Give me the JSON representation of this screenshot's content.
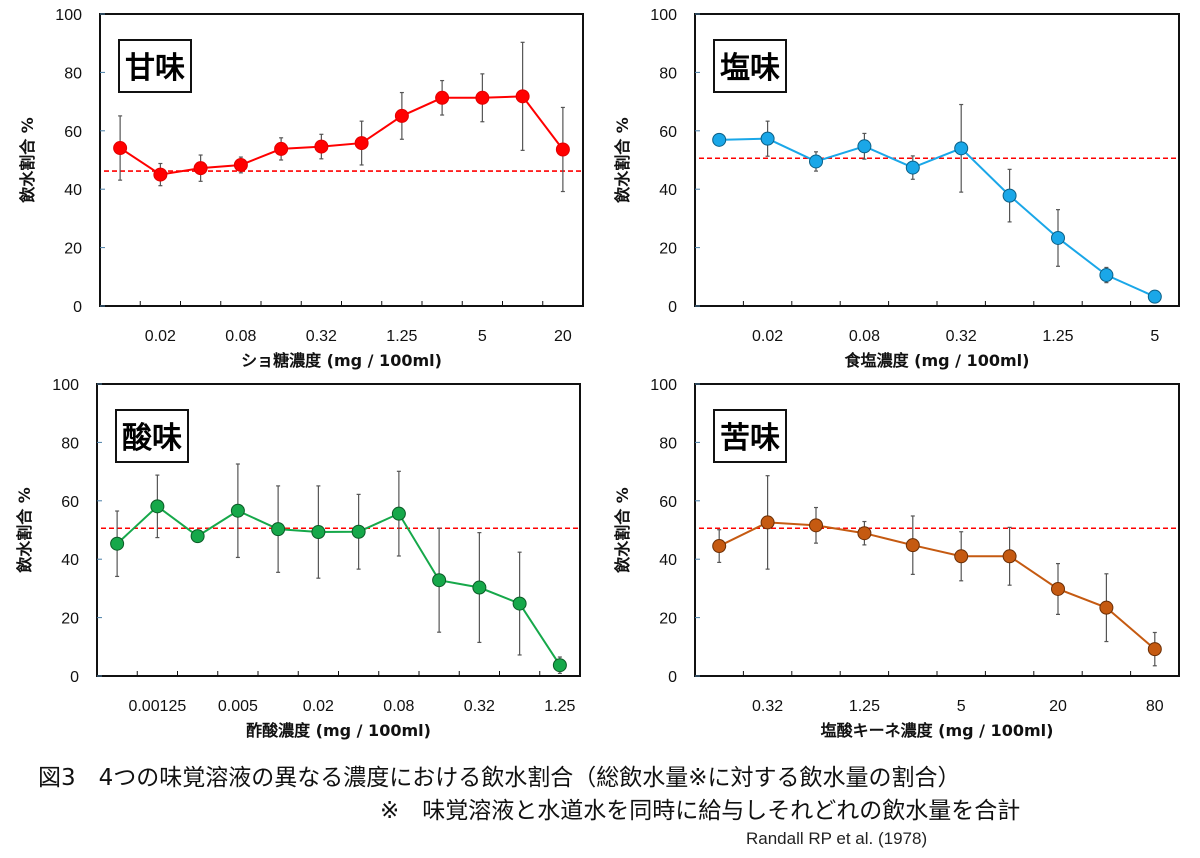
{
  "chart_data": [
    {
      "type": "line",
      "title": "甘味",
      "xlabel": "ショ糖濃度 (mg / 100ml)",
      "ylabel": "飲水割合 %",
      "ylim": [
        0,
        100
      ],
      "yticks": [
        0,
        20,
        40,
        60,
        80,
        100
      ],
      "x_scale": "log2 (categorical)",
      "tick_labels": [
        "",
        "0.02",
        "",
        "0.08",
        "",
        "0.32",
        "",
        "1.25",
        "",
        "5",
        "",
        "20"
      ],
      "values": [
        54.1,
        45.0,
        47.2,
        48.3,
        53.8,
        54.6,
        55.8,
        65.1,
        71.3,
        71.3,
        71.8,
        53.6
      ],
      "errors": [
        11,
        3.8,
        4.5,
        2.7,
        3.8,
        4.2,
        7.5,
        8,
        5.9,
        8.2,
        18.5,
        14.4
      ],
      "reference_line": 46.2,
      "color": "#ff0000",
      "marker_edge": "#e00000",
      "reference_color": "#ff0000",
      "grid": false
    },
    {
      "type": "line",
      "title": "塩味",
      "xlabel": "食塩濃度 (mg / 100ml)",
      "ylabel": "飲水割合 %",
      "ylim": [
        0,
        100
      ],
      "yticks": [
        0,
        20,
        40,
        60,
        80,
        100
      ],
      "x_scale": "log2 (categorical)",
      "tick_labels": [
        "",
        "0.02",
        "",
        "0.08",
        "",
        "0.32",
        "",
        "1.25",
        "",
        "5"
      ],
      "values": [
        56.9,
        57.3,
        49.5,
        54.7,
        47.4,
        54.0,
        37.8,
        23.3,
        10.6,
        3.2
      ],
      "errors": [
        0,
        6,
        3.3,
        4.4,
        4,
        15,
        9,
        9.7,
        2.6,
        0
      ],
      "reference_line": 50.6,
      "color": "#1aa7e8",
      "marker_edge": "#0b5f86",
      "reference_color": "#ff0000",
      "grid": false
    },
    {
      "type": "line",
      "title": "酸味",
      "xlabel": "酢酸濃度 (mg / 100ml)",
      "ylabel": "飲水割合 %",
      "ylim": [
        0,
        100
      ],
      "yticks": [
        0,
        20,
        40,
        60,
        80,
        100
      ],
      "x_scale": "log2 (categorical)",
      "tick_labels": [
        "",
        "0.00125",
        "",
        "0.005",
        "",
        "0.02",
        "",
        "0.08",
        "",
        "0.32",
        "",
        "1.25"
      ],
      "values": [
        45.3,
        58.1,
        47.9,
        56.6,
        50.3,
        49.3,
        49.4,
        55.6,
        32.8,
        30.3,
        24.8,
        3.7
      ],
      "errors": [
        11.2,
        10.7,
        1.5,
        16,
        14.8,
        15.8,
        12.8,
        14.5,
        17.8,
        18.8,
        17.6,
        2.8
      ],
      "reference_line": 50.6,
      "color": "#16a84a",
      "marker_edge": "#0b5a26",
      "reference_color": "#ff0000",
      "grid": false
    },
    {
      "type": "line",
      "title": "苦味",
      "xlabel": "塩酸キーネ濃度 (mg / 100ml)",
      "ylabel": "飲水割合 %",
      "ylim": [
        0,
        100
      ],
      "yticks": [
        0,
        20,
        40,
        60,
        80,
        100
      ],
      "x_scale": "log2 (categorical)",
      "tick_labels": [
        "",
        "0.32",
        "",
        "1.25",
        "",
        "5",
        "",
        "20",
        "",
        "80"
      ],
      "values": [
        44.5,
        52.6,
        51.6,
        48.9,
        44.8,
        41.0,
        41.0,
        29.8,
        23.4,
        9.2
      ],
      "errors": [
        5.6,
        16,
        6.1,
        4,
        10,
        8.4,
        9.9,
        8.7,
        11.6,
        5.7
      ],
      "reference_line": 50.6,
      "color": "#c55a11",
      "marker_edge": "#6b2e05",
      "reference_color": "#ff0000",
      "grid": false
    }
  ],
  "caption": {
    "line1": "図3　4つの味覚溶液の異なる濃度における飲水割合（総飲水量※に対する飲水量の割合）",
    "line2": "※　味覚溶液と水道水を同時に給与しそれどれの飲水量を合計",
    "citation": "Randall RP et al. (1978)"
  }
}
